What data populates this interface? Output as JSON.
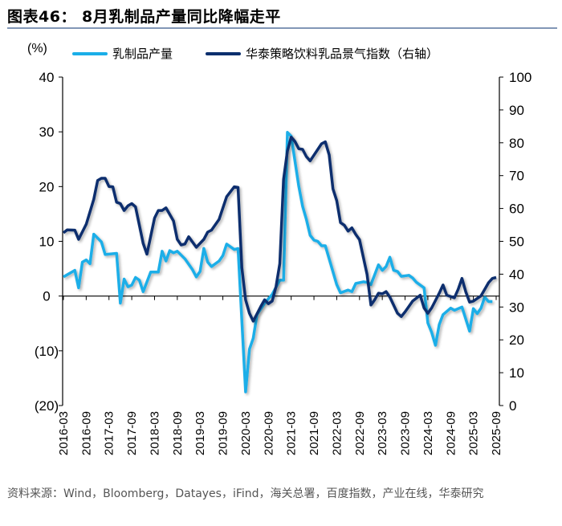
{
  "header": {
    "title": "图表46：  8月乳制品产量同比降幅走平"
  },
  "footer": {
    "source": "资料来源：Wind，Bloomberg，Datayes，iFind，海关总署，百度指数，产业在线，华泰研究"
  },
  "chart_data": {
    "type": "line",
    "title": "8月乳制品产量同比降幅走平",
    "left_axis": {
      "label": "(%)",
      "ylim": [
        -20,
        40
      ],
      "ticks": [
        "(20)",
        "(10)",
        "0",
        "10",
        "20",
        "30",
        "40"
      ],
      "tick_values": [
        -20,
        -10,
        0,
        10,
        20,
        30,
        40
      ]
    },
    "right_axis": {
      "ylim": [
        0,
        100
      ],
      "ticks": [
        "0",
        "10",
        "20",
        "30",
        "40",
        "50",
        "60",
        "70",
        "80",
        "90",
        "100"
      ],
      "tick_values": [
        0,
        10,
        20,
        30,
        40,
        50,
        60,
        70,
        80,
        90,
        100
      ]
    },
    "x_ticks": [
      "2016-03",
      "2016-09",
      "2017-03",
      "2017-09",
      "2018-03",
      "2018-09",
      "2019-03",
      "2019-09",
      "2020-03",
      "2020-09",
      "2021-03",
      "2021-09",
      "2022-03",
      "2022-09",
      "2023-03",
      "2023-09",
      "2024-03",
      "2024-09",
      "2025-03",
      "2025-09"
    ],
    "xlim": [
      "2016-03",
      "2025-09"
    ],
    "grid": false,
    "legend_position": "top",
    "series": [
      {
        "name": "乳制品产量",
        "axis": "left",
        "color": "#1aaee8",
        "points": [
          [
            "2016-03",
            3.5
          ],
          [
            "2016-06",
            4.7
          ],
          [
            "2016-07",
            1.5
          ],
          [
            "2016-08",
            6.2
          ],
          [
            "2016-09",
            6.6
          ],
          [
            "2016-10",
            5.9
          ],
          [
            "2016-11",
            11.3
          ],
          [
            "2017-01",
            9.9
          ],
          [
            "2017-02",
            7.6
          ],
          [
            "2017-05",
            7.8
          ],
          [
            "2017-06",
            -1.3
          ],
          [
            "2017-07",
            3.1
          ],
          [
            "2017-08",
            1.7
          ],
          [
            "2017-09",
            2.0
          ],
          [
            "2017-10",
            3.4
          ],
          [
            "2017-11",
            2.9
          ],
          [
            "2017-12",
            0.8
          ],
          [
            "2018-02",
            4.4
          ],
          [
            "2018-04",
            4.4
          ],
          [
            "2018-05",
            8.2
          ],
          [
            "2018-06",
            6.4
          ],
          [
            "2018-07",
            8.3
          ],
          [
            "2018-08",
            7.9
          ],
          [
            "2018-09",
            8.2
          ],
          [
            "2018-11",
            6.8
          ],
          [
            "2019-01",
            4.8
          ],
          [
            "2019-02",
            3.5
          ],
          [
            "2019-03",
            4.5
          ],
          [
            "2019-04",
            8.7
          ],
          [
            "2019-05",
            6.2
          ],
          [
            "2019-06",
            5.4
          ],
          [
            "2019-08",
            6.4
          ],
          [
            "2019-09",
            7.4
          ],
          [
            "2019-10",
            9.5
          ],
          [
            "2019-12",
            8.5
          ],
          [
            "2020-01",
            8.7
          ],
          [
            "2020-03",
            -17.5
          ],
          [
            "2020-04",
            -9.7
          ],
          [
            "2020-05",
            -7.7
          ],
          [
            "2020-06",
            -3.4
          ],
          [
            "2020-08",
            -1.3
          ],
          [
            "2020-10",
            0.3
          ],
          [
            "2020-12",
            2.9
          ],
          [
            "2021-01",
            2.9
          ],
          [
            "2021-02",
            29.9
          ],
          [
            "2021-03",
            29.2
          ],
          [
            "2021-05",
            20.1
          ],
          [
            "2021-06",
            16.4
          ],
          [
            "2021-07",
            14.0
          ],
          [
            "2021-08",
            11.1
          ],
          [
            "2021-09",
            10.2
          ],
          [
            "2021-10",
            10.0
          ],
          [
            "2021-11",
            9.2
          ],
          [
            "2021-12",
            9.2
          ],
          [
            "2022-03",
            2.1
          ],
          [
            "2022-04",
            0.6
          ],
          [
            "2022-06",
            1.1
          ],
          [
            "2022-07",
            0.8
          ],
          [
            "2022-08",
            2.3
          ],
          [
            "2022-10",
            2.6
          ],
          [
            "2022-11",
            2.5
          ],
          [
            "2022-12",
            2.1
          ],
          [
            "2023-02",
            5.7
          ],
          [
            "2023-03",
            4.7
          ],
          [
            "2023-04",
            5.4
          ],
          [
            "2023-05",
            7.1
          ],
          [
            "2023-06",
            4.7
          ],
          [
            "2023-07",
            4.5
          ],
          [
            "2023-08",
            3.6
          ],
          [
            "2023-10",
            3.8
          ],
          [
            "2023-11",
            3.3
          ],
          [
            "2023-12",
            2.5
          ],
          [
            "2024-02",
            1.5
          ],
          [
            "2024-03",
            -4.9
          ],
          [
            "2024-04",
            -6.6
          ],
          [
            "2024-05",
            -9.0
          ],
          [
            "2024-06",
            -5.2
          ],
          [
            "2024-07",
            -3.4
          ],
          [
            "2024-09",
            -2.2
          ],
          [
            "2024-10",
            -2.6
          ],
          [
            "2024-12",
            -2.0
          ],
          [
            "2025-02",
            -6.4
          ],
          [
            "2025-03",
            -2.3
          ],
          [
            "2025-04",
            -3.2
          ],
          [
            "2025-05",
            -2.2
          ],
          [
            "2025-06",
            -0.2
          ],
          [
            "2025-07",
            -1.0
          ],
          [
            "2025-08",
            -1.0
          ]
        ]
      },
      {
        "name": "华泰策略饮料乳品景气指数（右轴）",
        "axis": "right",
        "color": "#0b2f6e",
        "points": [
          [
            "2016-03",
            52.6
          ],
          [
            "2016-04",
            53.5
          ],
          [
            "2016-06",
            53.4
          ],
          [
            "2016-07",
            50.6
          ],
          [
            "2016-09",
            55.2
          ],
          [
            "2016-11",
            62.8
          ],
          [
            "2016-12",
            68.5
          ],
          [
            "2017-01",
            69.2
          ],
          [
            "2017-02",
            69.2
          ],
          [
            "2017-03",
            66.7
          ],
          [
            "2017-04",
            66.6
          ],
          [
            "2017-05",
            61.9
          ],
          [
            "2017-06",
            61.5
          ],
          [
            "2017-07",
            59.4
          ],
          [
            "2017-08",
            60.8
          ],
          [
            "2017-09",
            61.5
          ],
          [
            "2017-10",
            60.5
          ],
          [
            "2017-12",
            49.4
          ],
          [
            "2018-01",
            46.1
          ],
          [
            "2018-03",
            57.1
          ],
          [
            "2018-04",
            59.4
          ],
          [
            "2018-05",
            59.4
          ],
          [
            "2018-06",
            60.2
          ],
          [
            "2018-08",
            56.2
          ],
          [
            "2018-09",
            50.6
          ],
          [
            "2018-10",
            48.9
          ],
          [
            "2018-11",
            49.2
          ],
          [
            "2018-12",
            51.4
          ],
          [
            "2019-02",
            48.2
          ],
          [
            "2019-03",
            49.4
          ],
          [
            "2019-04",
            50.6
          ],
          [
            "2019-05",
            52.8
          ],
          [
            "2019-06",
            53.4
          ],
          [
            "2019-08",
            56.7
          ],
          [
            "2019-10",
            63.6
          ],
          [
            "2019-12",
            66.6
          ],
          [
            "2020-01",
            66.4
          ],
          [
            "2020-02",
            42.0
          ],
          [
            "2020-03",
            32.2
          ],
          [
            "2020-04",
            28.1
          ],
          [
            "2020-05",
            25.7
          ],
          [
            "2020-07",
            30.2
          ],
          [
            "2020-08",
            32.2
          ],
          [
            "2020-09",
            31.0
          ],
          [
            "2020-10",
            31.8
          ],
          [
            "2020-11",
            36.2
          ],
          [
            "2020-12",
            43.2
          ],
          [
            "2021-01",
            68.9
          ],
          [
            "2021-02",
            77.5
          ],
          [
            "2021-03",
            81.7
          ],
          [
            "2021-04",
            80.4
          ],
          [
            "2021-05",
            78.2
          ],
          [
            "2021-06",
            78.0
          ],
          [
            "2021-07",
            75.8
          ],
          [
            "2021-08",
            74.5
          ],
          [
            "2021-11",
            79.7
          ],
          [
            "2021-12",
            80.3
          ],
          [
            "2022-01",
            76.3
          ],
          [
            "2022-02",
            66.0
          ],
          [
            "2022-03",
            62.4
          ],
          [
            "2022-04",
            55.7
          ],
          [
            "2022-05",
            54.9
          ],
          [
            "2022-06",
            53.1
          ],
          [
            "2022-07",
            54.1
          ],
          [
            "2022-08",
            52.1
          ],
          [
            "2022-09",
            50.5
          ],
          [
            "2022-11",
            39.9
          ],
          [
            "2022-12",
            30.6
          ],
          [
            "2023-01",
            32.2
          ],
          [
            "2023-02",
            34.2
          ],
          [
            "2023-03",
            34.0
          ],
          [
            "2023-04",
            34.7
          ],
          [
            "2023-05",
            33.0
          ],
          [
            "2023-07",
            28.1
          ],
          [
            "2023-08",
            27.1
          ],
          [
            "2023-09",
            28.5
          ],
          [
            "2023-11",
            31.8
          ],
          [
            "2024-01",
            33.6
          ],
          [
            "2024-02",
            29.7
          ],
          [
            "2024-03",
            28.1
          ],
          [
            "2024-04",
            29.7
          ],
          [
            "2024-06",
            34.2
          ],
          [
            "2024-07",
            36.7
          ],
          [
            "2024-08",
            33.6
          ],
          [
            "2024-10",
            32.8
          ],
          [
            "2024-11",
            35.4
          ],
          [
            "2024-12",
            38.7
          ],
          [
            "2025-01",
            34.6
          ],
          [
            "2025-02",
            31.5
          ],
          [
            "2025-03",
            31.8
          ],
          [
            "2025-05",
            33.4
          ],
          [
            "2025-06",
            35.4
          ],
          [
            "2025-07",
            37.4
          ],
          [
            "2025-08",
            38.7
          ],
          [
            "2025-09",
            39.0
          ]
        ]
      }
    ]
  }
}
